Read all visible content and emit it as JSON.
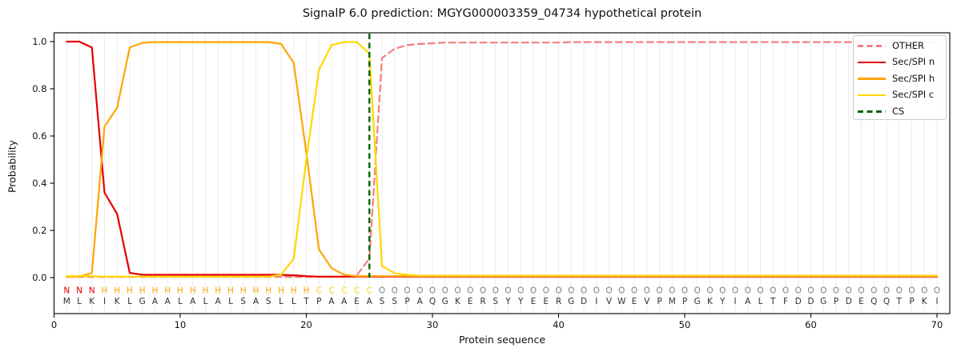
{
  "title": "SignalP 6.0 prediction: MGYG000003359_04734 hypothetical protein",
  "axes": {
    "xlabel": "Protein sequence",
    "ylabel": "Probability",
    "x_tick_labels": [
      "0",
      "10",
      "20",
      "30",
      "40",
      "50",
      "60",
      "70"
    ],
    "x_tick_values": [
      0,
      10,
      20,
      30,
      40,
      50,
      60,
      70
    ],
    "y_tick_labels": [
      "0.0",
      "0.2",
      "0.4",
      "0.6",
      "0.8",
      "1.0"
    ],
    "y_tick_values": [
      0.0,
      0.2,
      0.4,
      0.6,
      0.8,
      1.0
    ]
  },
  "legend": {
    "position": "upper-right",
    "items": [
      {
        "label": "OTHER",
        "color": "#f08080",
        "style": "dashed"
      },
      {
        "label": "Sec/SPI n",
        "color": "#e50000",
        "style": "solid"
      },
      {
        "label": "Sec/SPI h",
        "color": "#ffa500",
        "style": "solid"
      },
      {
        "label": "Sec/SPI c",
        "color": "#ffd700",
        "style": "solid"
      },
      {
        "label": "CS",
        "color": "#006400",
        "style": "dashed"
      }
    ]
  },
  "chart_data": {
    "type": "line",
    "title": "SignalP 6.0 prediction: MGYG000003359_04734 hypothetical protein",
    "xlabel": "Protein sequence",
    "ylabel": "Probability",
    "xlim": [
      0,
      71
    ],
    "ylim": [
      -0.1525,
      1.037
    ],
    "grid": "vertical-per-residue",
    "x": "residue positions 1..70",
    "cs_position": 25,
    "sequence": "MLKIKLGAALALALSASLLTPAAEASSPAQGKERSYYEERGDIVWEVPMPGKYIALTFDDGPDEQQTPKI",
    "states": "NNNHHHHHHHHHHHHHHHHHCCCCCOOOOOOOOOOOOOOOOOOOOOOOOOOOOOOOOOOOOOOOOOOOOO",
    "state_colors": {
      "N": "#e50000",
      "H": "#ffa500",
      "C": "#ffd700",
      "O": "#7f7f7f"
    },
    "sequence_color": "#333333",
    "series": [
      {
        "name": "OTHER",
        "color": "#f08080",
        "dashed": true,
        "values": [
          0.003,
          0.003,
          0.003,
          0.003,
          0.003,
          0.003,
          0.003,
          0.003,
          0.003,
          0.003,
          0.003,
          0.003,
          0.003,
          0.003,
          0.003,
          0.003,
          0.003,
          0.003,
          0.003,
          0.003,
          0.003,
          0.003,
          0.003,
          0.01,
          0.08,
          0.93,
          0.97,
          0.985,
          0.99,
          0.993,
          0.996,
          0.996,
          0.996,
          0.996,
          0.996,
          0.996,
          0.996,
          0.996,
          0.996,
          0.996,
          0.998,
          0.998,
          0.998,
          0.998,
          0.998,
          0.998,
          0.998,
          0.998,
          0.998,
          0.998,
          0.998,
          0.998,
          0.998,
          0.998,
          0.998,
          0.998,
          0.998,
          0.998,
          0.998,
          0.998,
          0.998,
          0.998,
          0.998,
          0.998,
          0.998,
          0.998,
          0.998,
          0.998,
          0.998,
          0.998
        ]
      },
      {
        "name": "Sec/SPI n",
        "color": "#e50000",
        "dashed": false,
        "values": [
          1.0,
          1.0,
          0.975,
          0.36,
          0.27,
          0.02,
          0.012,
          0.012,
          0.012,
          0.012,
          0.012,
          0.012,
          0.012,
          0.012,
          0.012,
          0.012,
          0.012,
          0.012,
          0.01,
          0.006,
          0.004,
          0.004,
          0.004,
          0.004,
          0.004,
          0.004,
          0.004,
          0.004,
          0.004,
          0.004,
          0.004,
          0.004,
          0.004,
          0.004,
          0.004,
          0.004,
          0.004,
          0.004,
          0.004,
          0.004,
          0.004,
          0.004,
          0.004,
          0.004,
          0.004,
          0.004,
          0.004,
          0.004,
          0.004,
          0.004,
          0.004,
          0.004,
          0.004,
          0.004,
          0.004,
          0.004,
          0.004,
          0.004,
          0.004,
          0.004,
          0.004,
          0.004,
          0.004,
          0.004,
          0.004,
          0.004,
          0.004,
          0.004,
          0.004,
          0.004
        ]
      },
      {
        "name": "Sec/SPI h",
        "color": "#ffa500",
        "dashed": false,
        "values": [
          0.004,
          0.004,
          0.02,
          0.64,
          0.72,
          0.975,
          0.995,
          0.998,
          0.998,
          0.998,
          0.998,
          0.998,
          0.998,
          0.998,
          0.998,
          0.998,
          0.998,
          0.99,
          0.91,
          0.53,
          0.12,
          0.04,
          0.012,
          0.006,
          0.006,
          0.006,
          0.006,
          0.006,
          0.006,
          0.006,
          0.006,
          0.006,
          0.006,
          0.006,
          0.006,
          0.006,
          0.006,
          0.006,
          0.006,
          0.006,
          0.006,
          0.006,
          0.006,
          0.006,
          0.006,
          0.006,
          0.006,
          0.006,
          0.006,
          0.006,
          0.006,
          0.006,
          0.006,
          0.006,
          0.006,
          0.006,
          0.006,
          0.006,
          0.006,
          0.006,
          0.006,
          0.006,
          0.006,
          0.006,
          0.006,
          0.006,
          0.006,
          0.006,
          0.006,
          0.006
        ]
      },
      {
        "name": "Sec/SPI c",
        "color": "#ffd700",
        "dashed": false,
        "values": [
          0.006,
          0.006,
          0.006,
          0.004,
          0.004,
          0.004,
          0.004,
          0.004,
          0.004,
          0.004,
          0.004,
          0.004,
          0.004,
          0.004,
          0.004,
          0.004,
          0.004,
          0.012,
          0.08,
          0.5,
          0.88,
          0.985,
          0.998,
          0.998,
          0.95,
          0.05,
          0.018,
          0.012,
          0.008,
          0.008,
          0.008,
          0.008,
          0.008,
          0.008,
          0.008,
          0.008,
          0.008,
          0.008,
          0.008,
          0.008,
          0.008,
          0.008,
          0.008,
          0.008,
          0.008,
          0.008,
          0.008,
          0.008,
          0.008,
          0.008,
          0.008,
          0.008,
          0.008,
          0.008,
          0.008,
          0.008,
          0.008,
          0.008,
          0.008,
          0.008,
          0.008,
          0.008,
          0.008,
          0.008,
          0.008,
          0.008,
          0.008,
          0.008,
          0.008,
          0.008
        ]
      }
    ]
  }
}
